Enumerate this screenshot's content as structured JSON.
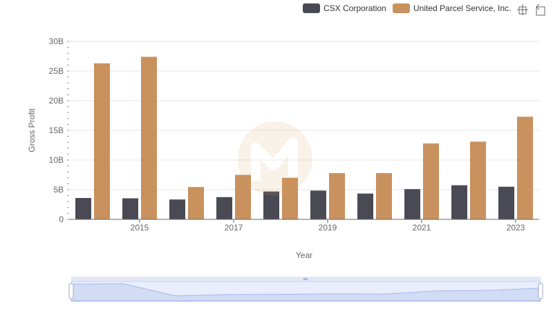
{
  "chart_data": {
    "type": "bar",
    "x": [
      2014,
      2015,
      2016,
      2017,
      2018,
      2019,
      2020,
      2021,
      2022,
      2023
    ],
    "x_tick_labels": [
      "2015",
      "2017",
      "2019",
      "2021",
      "2023"
    ],
    "series": [
      {
        "name": "CSX Corporation",
        "color": "#4a4a55",
        "values": [
          3.6,
          3.55,
          3.35,
          3.75,
          4.7,
          4.85,
          4.35,
          5.1,
          5.75,
          5.5
        ]
      },
      {
        "name": "United Parcel Service, Inc.",
        "color": "#c9915e",
        "values": [
          26.3,
          27.4,
          5.45,
          7.5,
          7.0,
          7.8,
          7.8,
          12.8,
          13.1,
          17.3
        ]
      }
    ],
    "y_ticks": [
      0,
      5,
      10,
      15,
      20,
      25,
      30
    ],
    "y_tick_labels": [
      "0",
      "5B",
      "10B",
      "15B",
      "20B",
      "25B",
      "30B"
    ],
    "ylim": [
      0,
      30
    ],
    "xlabel": "Year",
    "ylabel": "Gross Profit",
    "legend_position": "top-right",
    "grid": true,
    "toolbox_icons": [
      "restore-icon",
      "zoom-icon"
    ]
  }
}
